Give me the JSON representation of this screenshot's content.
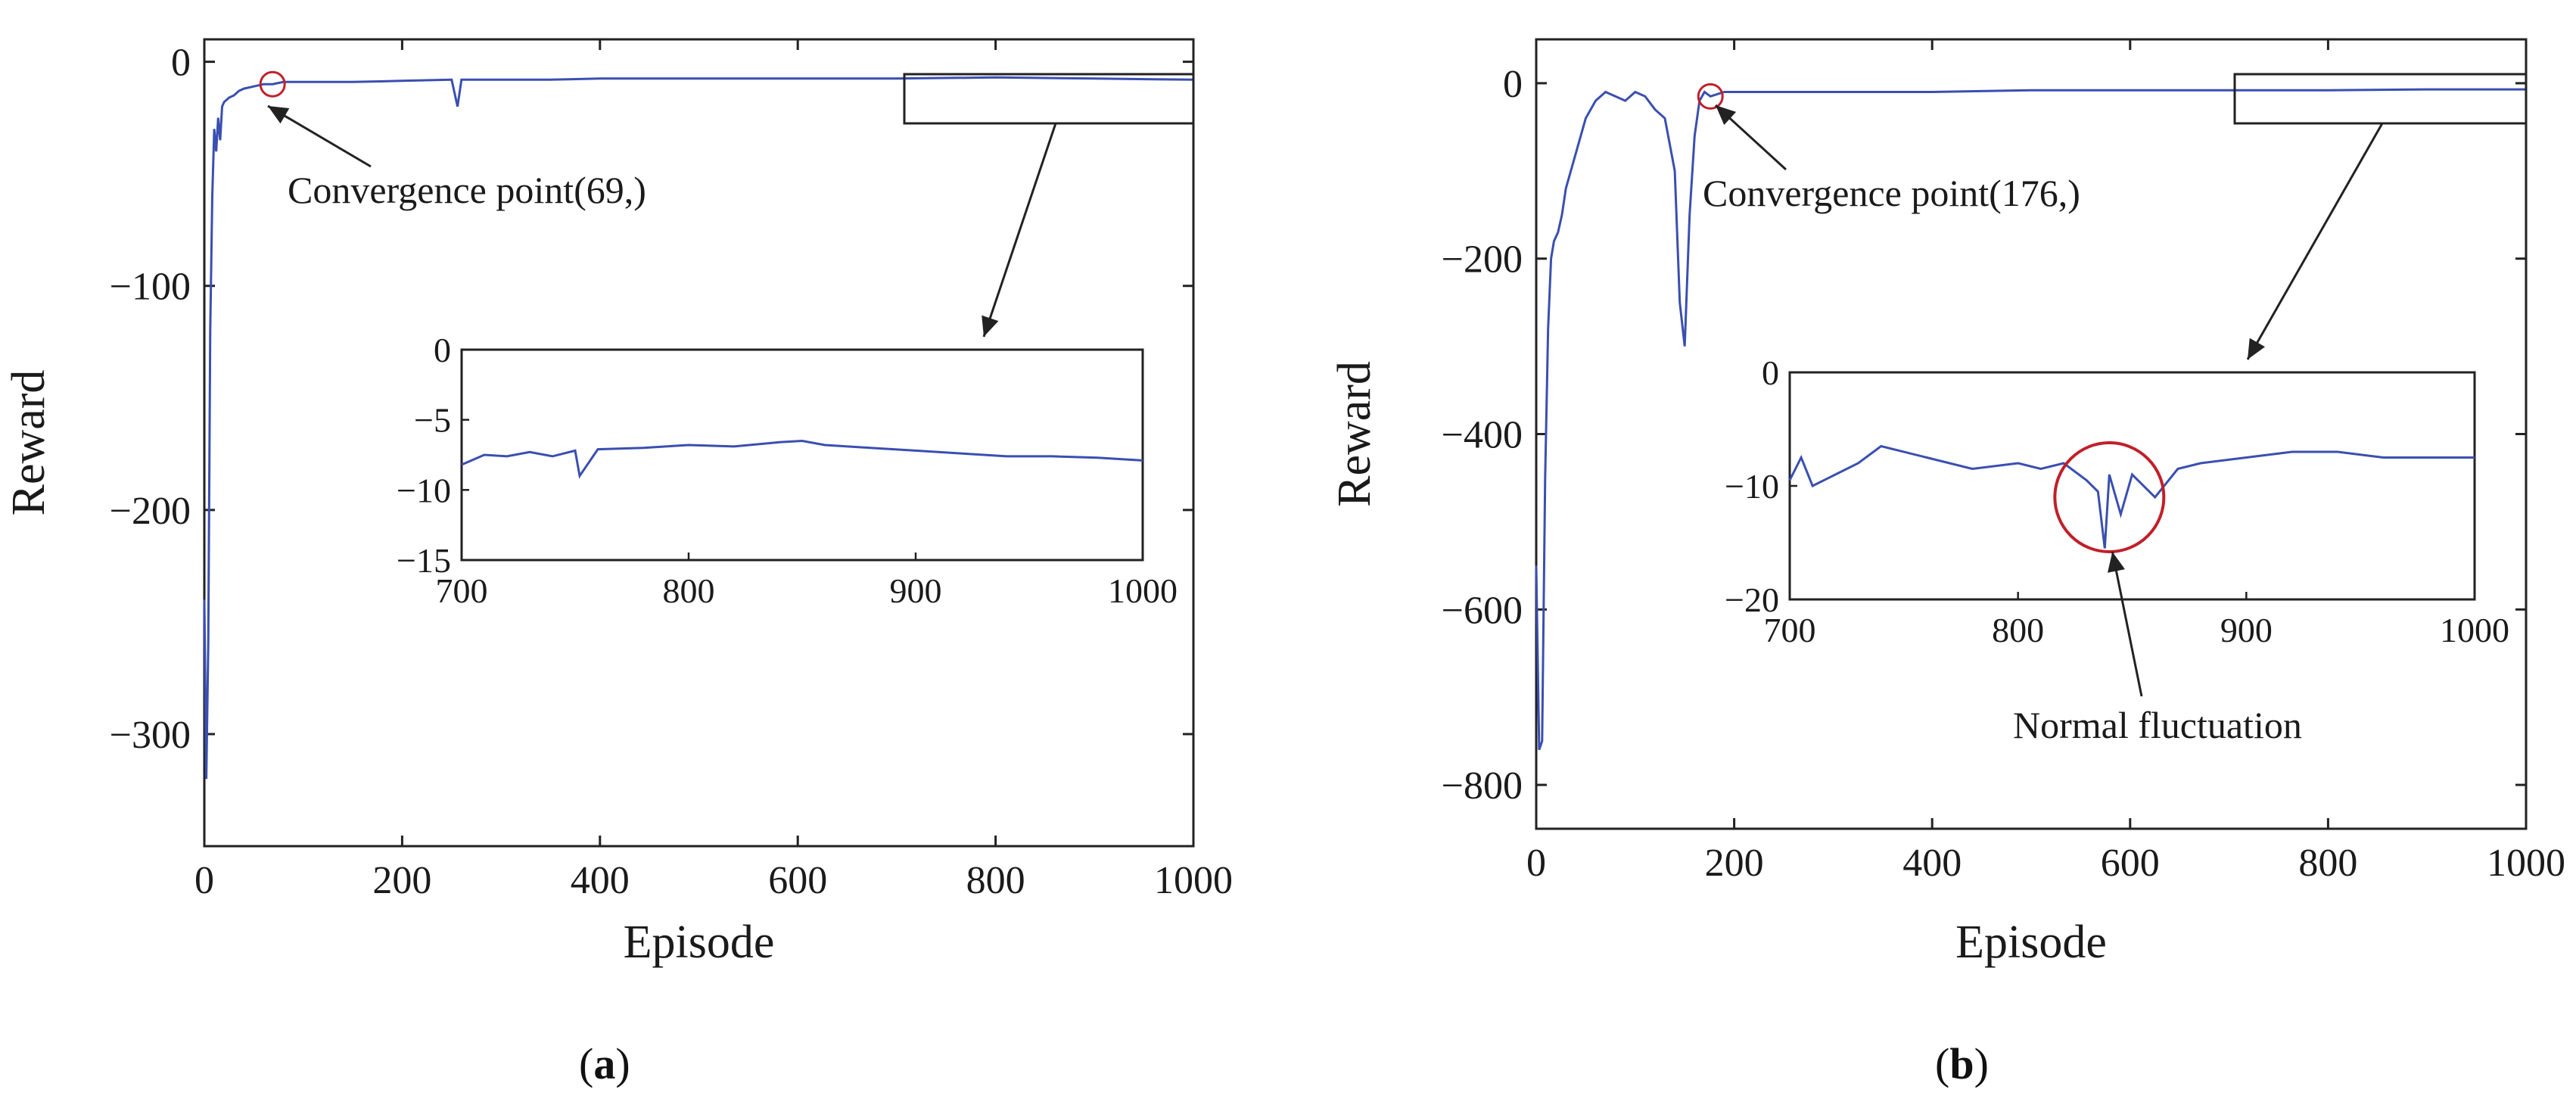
{
  "chart_data": [
    {
      "type": "line",
      "panel_label": "a",
      "xlabel": "Episode",
      "ylabel": "Reward",
      "xlim": [
        0,
        1000
      ],
      "ylim": [
        -350,
        10
      ],
      "xticks": [
        0,
        200,
        400,
        600,
        800,
        1000
      ],
      "yticks": [
        0,
        -100,
        -200,
        -300
      ],
      "series_color": "#3a4fb0",
      "series": [
        {
          "x": [
            0,
            2,
            4,
            6,
            8,
            10,
            12,
            14,
            16,
            18,
            20,
            25,
            30,
            35,
            40,
            50,
            60,
            69,
            80,
            100,
            150,
            200,
            250,
            256,
            260,
            300,
            350,
            400,
            450,
            500,
            600,
            700,
            800,
            900,
            1000
          ],
          "y": [
            -240,
            -320,
            -260,
            -120,
            -60,
            -30,
            -40,
            -25,
            -35,
            -20,
            -18,
            -16,
            -15,
            -13,
            -12,
            -11,
            -10,
            -10,
            -9,
            -9,
            -9,
            -8.5,
            -8,
            -20,
            -8,
            -8,
            -8,
            -7.5,
            -7.5,
            -7.5,
            -7.5,
            -7.5,
            -7,
            -7.5,
            -8
          ]
        }
      ],
      "convergence_annotation": {
        "text": "Convergence point(69,)",
        "x": 69,
        "y": -10
      },
      "inset": {
        "xlim": [
          700,
          1000
        ],
        "ylim": [
          -15,
          0
        ],
        "xticks": [
          700,
          800,
          900,
          1000
        ],
        "yticks": [
          0,
          -5,
          -10,
          -15
        ],
        "x": [
          700,
          710,
          720,
          730,
          740,
          750,
          752,
          760,
          780,
          800,
          820,
          840,
          850,
          860,
          880,
          900,
          920,
          940,
          960,
          980,
          1000
        ],
        "y": [
          -8.2,
          -7.5,
          -7.6,
          -7.3,
          -7.6,
          -7.2,
          -9.0,
          -7.1,
          -7.0,
          -6.8,
          -6.9,
          -6.6,
          -6.5,
          -6.8,
          -7.0,
          -7.2,
          -7.4,
          -7.6,
          -7.6,
          -7.7,
          -7.9
        ]
      }
    },
    {
      "type": "line",
      "panel_label": "b",
      "xlabel": "Episode",
      "ylabel": "Reward",
      "xlim": [
        0,
        1000
      ],
      "ylim": [
        -850,
        50
      ],
      "xticks": [
        0,
        200,
        400,
        600,
        800,
        1000
      ],
      "yticks": [
        0,
        -200,
        -400,
        -600,
        -800
      ],
      "series_color": "#3a4fb0",
      "series": [
        {
          "x": [
            0,
            3,
            6,
            9,
            12,
            15,
            18,
            22,
            26,
            30,
            40,
            50,
            60,
            70,
            80,
            90,
            100,
            110,
            120,
            130,
            140,
            145,
            150,
            155,
            160,
            165,
            170,
            176,
            190,
            250,
            300,
            400,
            500,
            600,
            700,
            800,
            900,
            1000
          ],
          "y": [
            -550,
            -760,
            -750,
            -450,
            -280,
            -200,
            -180,
            -170,
            -150,
            -120,
            -80,
            -40,
            -20,
            -10,
            -15,
            -20,
            -10,
            -15,
            -30,
            -40,
            -100,
            -250,
            -300,
            -150,
            -60,
            -20,
            -10,
            -15,
            -10,
            -10,
            -10,
            -10,
            -8,
            -8,
            -8,
            -8,
            -7,
            -7
          ]
        }
      ],
      "convergence_annotation": {
        "text": "Convergence point(176,)",
        "x": 176,
        "y": -15
      },
      "inset": {
        "xlim": [
          700,
          1000
        ],
        "ylim": [
          -20,
          0
        ],
        "xticks": [
          700,
          800,
          900,
          1000
        ],
        "yticks": [
          0,
          -10,
          -20
        ],
        "x": [
          700,
          705,
          710,
          720,
          730,
          740,
          760,
          780,
          800,
          810,
          820,
          830,
          835,
          838,
          840,
          845,
          850,
          860,
          870,
          880,
          900,
          920,
          940,
          960,
          980,
          1000
        ],
        "y": [
          -9.5,
          -7.5,
          -10.0,
          -9.0,
          -8.0,
          -6.5,
          -7.5,
          -8.5,
          -8.0,
          -8.5,
          -8.0,
          -9.5,
          -10.5,
          -15.5,
          -9.0,
          -12.5,
          -9.0,
          -11.0,
          -8.5,
          -8.0,
          -7.5,
          -7.0,
          -7.0,
          -7.5,
          -7.5,
          -7.5
        ]
      },
      "fluctuation_annotation": {
        "text": "Normal fluctuation"
      }
    }
  ]
}
